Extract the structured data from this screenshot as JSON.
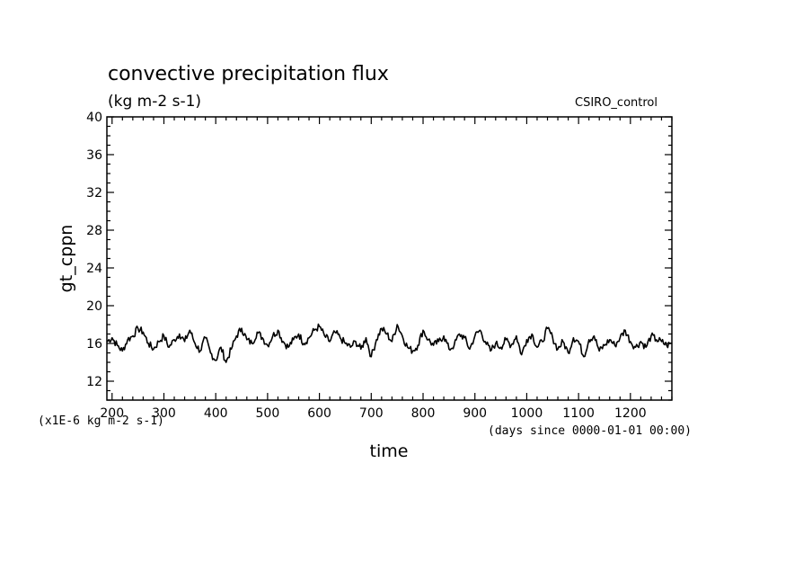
{
  "chart_data": {
    "type": "line",
    "title": "convective precipitation flux",
    "subtitle": "(kg m-2 s-1)",
    "source_label": "CSIRO_control",
    "xlabel": "time",
    "xunits": "(days since 0000-01-01 00:00)",
    "ylabel": "gt_cppn",
    "yscale_note": "(x1E-6 kg m-2 s-1)",
    "xlim": [
      190,
      1280
    ],
    "ylim": [
      10,
      40
    ],
    "xticks": [
      200,
      300,
      400,
      500,
      600,
      700,
      800,
      900,
      1000,
      1100,
      1200
    ],
    "yticks": [
      12,
      16,
      20,
      24,
      28,
      32,
      36,
      40
    ],
    "series": [
      {
        "color": "#000000",
        "x": [
          190,
          200,
          210,
          220,
          230,
          240,
          250,
          260,
          270,
          280,
          290,
          300,
          310,
          320,
          330,
          340,
          350,
          360,
          370,
          380,
          390,
          400,
          410,
          420,
          430,
          440,
          450,
          460,
          470,
          480,
          490,
          500,
          510,
          520,
          530,
          540,
          550,
          560,
          570,
          580,
          590,
          600,
          610,
          620,
          630,
          640,
          650,
          660,
          670,
          680,
          690,
          700,
          710,
          720,
          730,
          740,
          750,
          760,
          770,
          780,
          790,
          800,
          810,
          820,
          830,
          840,
          850,
          860,
          870,
          880,
          890,
          900,
          910,
          920,
          930,
          940,
          950,
          960,
          970,
          980,
          990,
          1000,
          1010,
          1020,
          1030,
          1040,
          1050,
          1060,
          1070,
          1080,
          1090,
          1100,
          1110,
          1120,
          1130,
          1140,
          1150,
          1160,
          1170,
          1180,
          1190,
          1200,
          1210,
          1220,
          1230,
          1240,
          1250,
          1260,
          1270,
          1280
        ],
        "y": [
          16.2,
          16.6,
          15.8,
          15.2,
          16.4,
          16.8,
          17.6,
          17.2,
          16.0,
          15.4,
          16.2,
          16.8,
          15.6,
          16.4,
          17.0,
          16.2,
          17.4,
          16.0,
          15.2,
          16.6,
          15.0,
          14.2,
          15.6,
          14.0,
          15.4,
          16.8,
          17.6,
          16.4,
          16.0,
          17.2,
          16.6,
          15.8,
          16.8,
          17.4,
          16.2,
          15.6,
          16.4,
          17.0,
          16.0,
          16.6,
          17.4,
          17.8,
          16.8,
          16.2,
          17.2,
          16.6,
          16.0,
          15.6,
          16.2,
          15.4,
          16.6,
          14.6,
          16.4,
          17.6,
          17.0,
          16.2,
          18.0,
          16.8,
          15.6,
          15.2,
          15.8,
          17.4,
          16.4,
          15.8,
          16.2,
          16.8,
          15.4,
          15.8,
          17.0,
          16.6,
          15.4,
          16.8,
          17.4,
          16.2,
          15.2,
          16.0,
          15.6,
          16.4,
          15.8,
          16.8,
          14.8,
          16.4,
          17.0,
          15.6,
          16.2,
          17.6,
          16.6,
          15.4,
          16.2,
          15.0,
          16.6,
          16.2,
          14.6,
          16.4,
          16.8,
          15.2,
          15.8,
          16.4,
          15.8,
          16.6,
          17.4,
          16.2,
          15.6,
          16.2,
          15.6,
          16.8,
          16.4,
          16.2,
          15.8,
          16.0
        ]
      }
    ]
  }
}
